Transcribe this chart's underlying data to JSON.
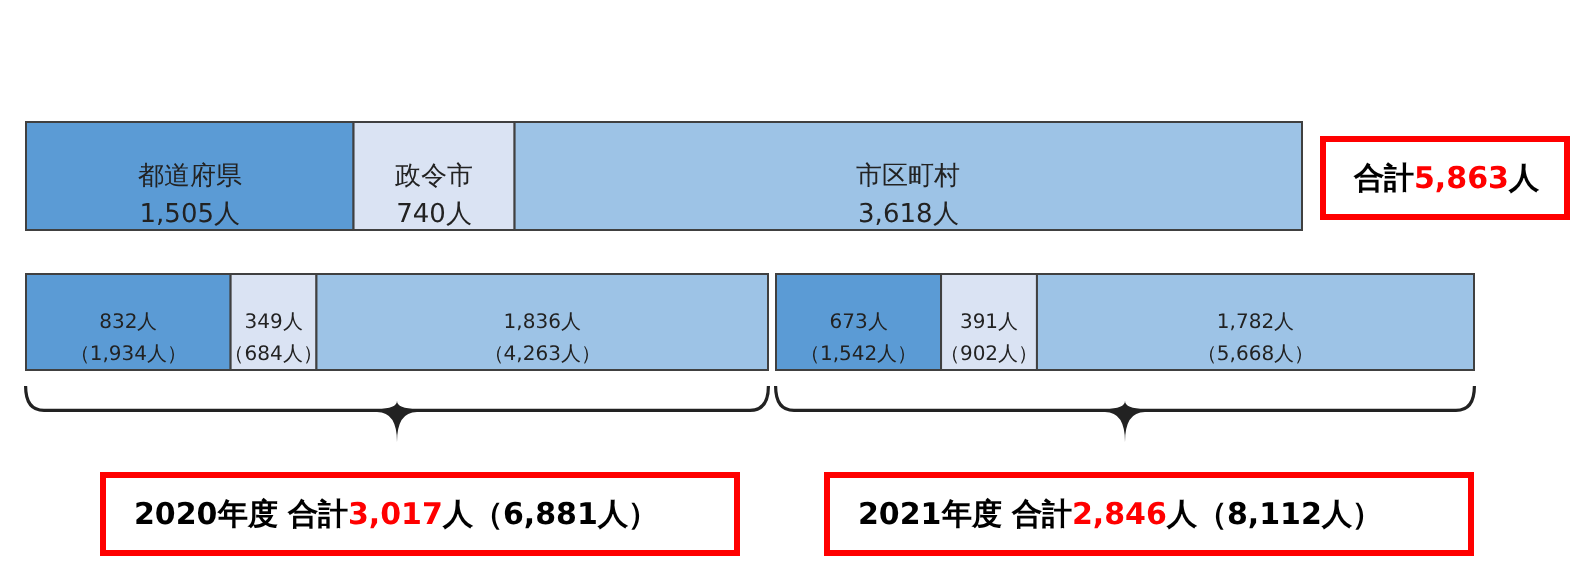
{
  "chart_data": [
    {
      "type": "bar",
      "orientation": "horizontal",
      "stacked": true,
      "categories": [
        null
      ],
      "legend": false,
      "tick_labels": false,
      "series": [
        {
          "name": "都道府県",
          "color": "#5b9bd5",
          "values": [
            1505
          ],
          "value_labels": [
            "1,505人"
          ]
        },
        {
          "name": "政令市",
          "color": "#dae3f3",
          "values": [
            740
          ],
          "value_labels": [
            "740人"
          ]
        },
        {
          "name": "市区町村",
          "color": "#9dc3e6",
          "values": [
            3618
          ],
          "value_labels": [
            "3,618人"
          ]
        }
      ],
      "annotations": [
        "合計5,863人"
      ]
    },
    {
      "type": "bar",
      "orientation": "horizontal",
      "stacked": true,
      "categories": [
        null
      ],
      "legend": false,
      "tick_labels": false,
      "series": [
        {
          "color": "#5b9bd5",
          "values": [
            832
          ],
          "value_labels": [
            "832人（1,934人）"
          ]
        },
        {
          "color": "#dae3f3",
          "values": [
            349
          ],
          "value_labels": [
            "349人（684人）"
          ]
        },
        {
          "color": "#9dc3e6",
          "values": [
            1836
          ],
          "value_labels": [
            "1,836人（4,263人）"
          ]
        }
      ],
      "annotations": [
        "2020年度 合計3,017人（6,881人）"
      ]
    },
    {
      "type": "bar",
      "orientation": "horizontal",
      "stacked": true,
      "categories": [
        null
      ],
      "legend": false,
      "tick_labels": false,
      "series": [
        {
          "color": "#5b9bd5",
          "values": [
            673
          ],
          "value_labels": [
            "673人（1,542人）"
          ]
        },
        {
          "color": "#dae3f3",
          "values": [
            391
          ],
          "value_labels": [
            "391人（902人）"
          ]
        },
        {
          "color": "#9dc3e6",
          "values": [
            1782
          ],
          "value_labels": [
            "1,782人（5,668人）"
          ]
        }
      ],
      "annotations": [
        "2021年度 合計2,846人（8,112人）"
      ]
    }
  ]
}
